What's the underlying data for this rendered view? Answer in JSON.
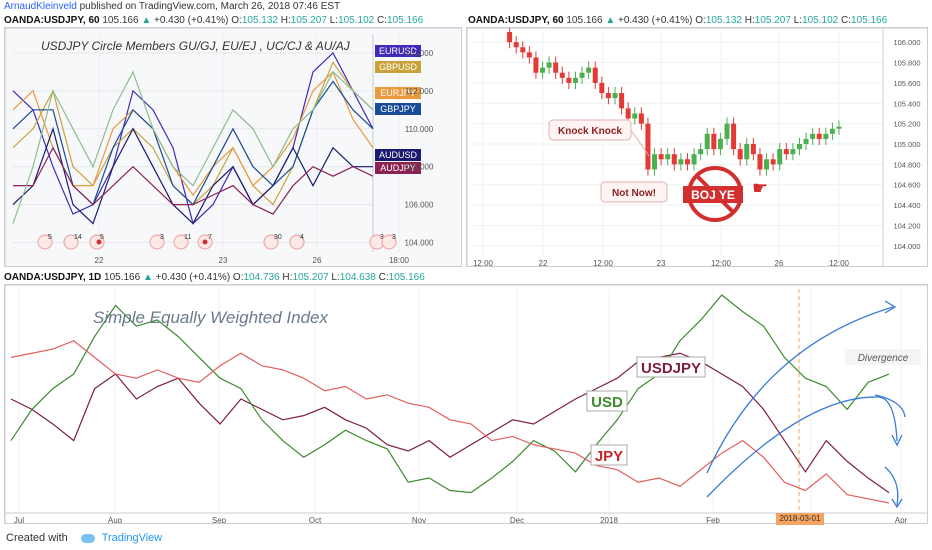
{
  "topbar": {
    "author": "ArnaudKleinveld",
    "published": "published on TradingView.com, March 26, 2018 07:46 EST"
  },
  "chart_data": [
    {
      "type": "line",
      "header": {
        "symbol": "OANDA:USDJPY, 60",
        "price": "105.166",
        "change": "+0.430 (+0.41%)",
        "o": "105.132",
        "h": "105.207",
        "l": "105.102",
        "c": "105.166"
      },
      "title": "USDJPY Circle Members GU/GJ,  EU/EJ , UC/CJ & AU/AJ",
      "x_ticks": [
        "22",
        "23",
        "26",
        "18:00"
      ],
      "y_ticks": [
        "114.000",
        "112.000",
        "110.000",
        "108.000",
        "106.000",
        "104.000"
      ],
      "ylim": [
        103.5,
        115
      ],
      "event_icons": [
        "5",
        "14",
        "5",
        "3",
        "11",
        "7",
        "30",
        "4",
        "3",
        "3"
      ],
      "series": [
        {
          "name": "EURUSD",
          "color": "#3f2bb8",
          "values": [
            112,
            111,
            108,
            105.5,
            106,
            108,
            112,
            111,
            109,
            105,
            106,
            108,
            106,
            107,
            109,
            113,
            114,
            112,
            110
          ]
        },
        {
          "name": "GBPUSD",
          "color": "#c9a23a",
          "values": [
            109,
            110,
            112,
            108,
            107,
            109,
            110,
            109,
            107,
            106,
            107,
            109,
            107,
            106,
            108,
            111,
            113.5,
            112,
            111
          ]
        },
        {
          "name": "EURJPY",
          "color": "#e89a3c",
          "values": [
            111,
            112,
            109,
            107,
            107,
            110,
            111,
            110,
            108,
            106.5,
            108,
            109,
            107,
            108,
            109.5,
            112,
            113,
            110.5,
            109
          ]
        },
        {
          "name": "GBPJPY",
          "color": "#1a4b96",
          "values": [
            110,
            111,
            111,
            107,
            106,
            109,
            111,
            110,
            107,
            106,
            108,
            110,
            108,
            107,
            108,
            111,
            112.5,
            111,
            110
          ]
        },
        {
          "name": "AUDUSD",
          "color": "#1a1a6e",
          "values": [
            106,
            107,
            110,
            106,
            105,
            108,
            110,
            108,
            106,
            105,
            107,
            108,
            106,
            107,
            109,
            107,
            109,
            108,
            108
          ]
        },
        {
          "name": "AUDJPY",
          "color": "#8b2252",
          "values": [
            107,
            107,
            109,
            107,
            106,
            107,
            108,
            107,
            106,
            106,
            106.5,
            107,
            106,
            105.5,
            107,
            108,
            107.5,
            108,
            107.5
          ]
        },
        {
          "name": "",
          "color": "#8fbc8f",
          "values": [
            105,
            108,
            112,
            110,
            108,
            111,
            113,
            110,
            108,
            107,
            109,
            111,
            110,
            108,
            110,
            111,
            113,
            112,
            111
          ]
        }
      ]
    },
    {
      "type": "candlestick",
      "header": {
        "symbol": "OANDA:USDJPY, 60",
        "price": "105.166",
        "change": "+0.430 (+0.41%)",
        "o": "105.132",
        "h": "105.207",
        "l": "105.102",
        "c": "105.166"
      },
      "x_ticks": [
        "12:00",
        "22",
        "12:00",
        "23",
        "12:00",
        "26",
        "12:00"
      ],
      "y_ticks": [
        "106.000",
        "105.800",
        "105.600",
        "105.400",
        "105.200",
        "105.000",
        "104.800",
        "104.600",
        "104.400",
        "104.200",
        "104.000"
      ],
      "ylim": [
        103.9,
        106.1
      ],
      "closes": [
        106.1,
        106,
        105.95,
        105.9,
        105.85,
        105.7,
        105.75,
        105.8,
        105.7,
        105.65,
        105.6,
        105.65,
        105.7,
        105.75,
        105.6,
        105.5,
        105.45,
        105.5,
        105.35,
        105.25,
        105.3,
        105.2,
        104.75,
        104.9,
        104.85,
        104.9,
        104.8,
        104.85,
        104.8,
        104.9,
        104.95,
        105.1,
        104.95,
        105.05,
        105.2,
        104.95,
        104.85,
        105,
        104.9,
        104.75,
        104.85,
        104.8,
        104.95,
        104.9,
        104.95,
        105,
        105.05,
        105.1,
        105.05,
        105.1,
        105.15,
        105.17
      ],
      "annotations": {
        "knock": "Knock Knock",
        "notnow": "Not Now!",
        "boj": "BOJ YE"
      }
    },
    {
      "type": "line",
      "header": {
        "symbol": "OANDA:USDJPY, 1D",
        "price": "105.166",
        "change": "+0.430 (+0.41%)",
        "o": "104.736",
        "h": "105.207",
        "l": "104.638",
        "c": "105.166"
      },
      "title": "Simple Equally Weighted Index",
      "x_ticks": [
        "Jul",
        "Aug",
        "Sep",
        "Oct",
        "Nov",
        "Dec",
        "2018",
        "Feb",
        "Mar",
        "Apr"
      ],
      "date_marker": "2018-03-01",
      "annotations": {
        "divergence": "Divergence"
      },
      "series": [
        {
          "name": "USDJPY",
          "color": "#7b1f3a",
          "values": [
            50,
            45,
            38,
            30,
            55,
            62,
            50,
            56,
            60,
            48,
            38,
            50,
            45,
            40,
            42,
            46,
            40,
            36,
            28,
            25,
            30,
            22,
            28,
            34,
            40,
            38,
            44,
            50,
            55,
            60,
            68,
            70,
            72,
            68,
            62,
            56,
            45,
            30,
            15,
            30,
            20,
            12,
            5
          ]
        },
        {
          "name": "USD",
          "color": "#3d8b2e",
          "values": [
            30,
            45,
            55,
            62,
            80,
            95,
            85,
            88,
            80,
            70,
            60,
            55,
            40,
            30,
            22,
            28,
            35,
            30,
            26,
            10,
            12,
            6,
            5,
            12,
            20,
            30,
            25,
            15,
            28,
            40,
            55,
            62,
            78,
            88,
            100,
            92,
            85,
            70,
            60,
            56,
            45,
            58,
            62
          ]
        },
        {
          "name": "JPY",
          "color": "#e06060",
          "values": [
            70,
            72,
            74,
            78,
            70,
            62,
            60,
            64,
            60,
            58,
            66,
            72,
            66,
            64,
            60,
            54,
            56,
            50,
            52,
            48,
            46,
            40,
            38,
            30,
            32,
            28,
            26,
            24,
            18,
            16,
            10,
            12,
            8,
            16,
            24,
            30,
            22,
            10,
            6,
            14,
            4,
            2,
            0
          ]
        }
      ]
    }
  ],
  "footer": {
    "created": "Created with",
    "brand": "TradingView"
  }
}
